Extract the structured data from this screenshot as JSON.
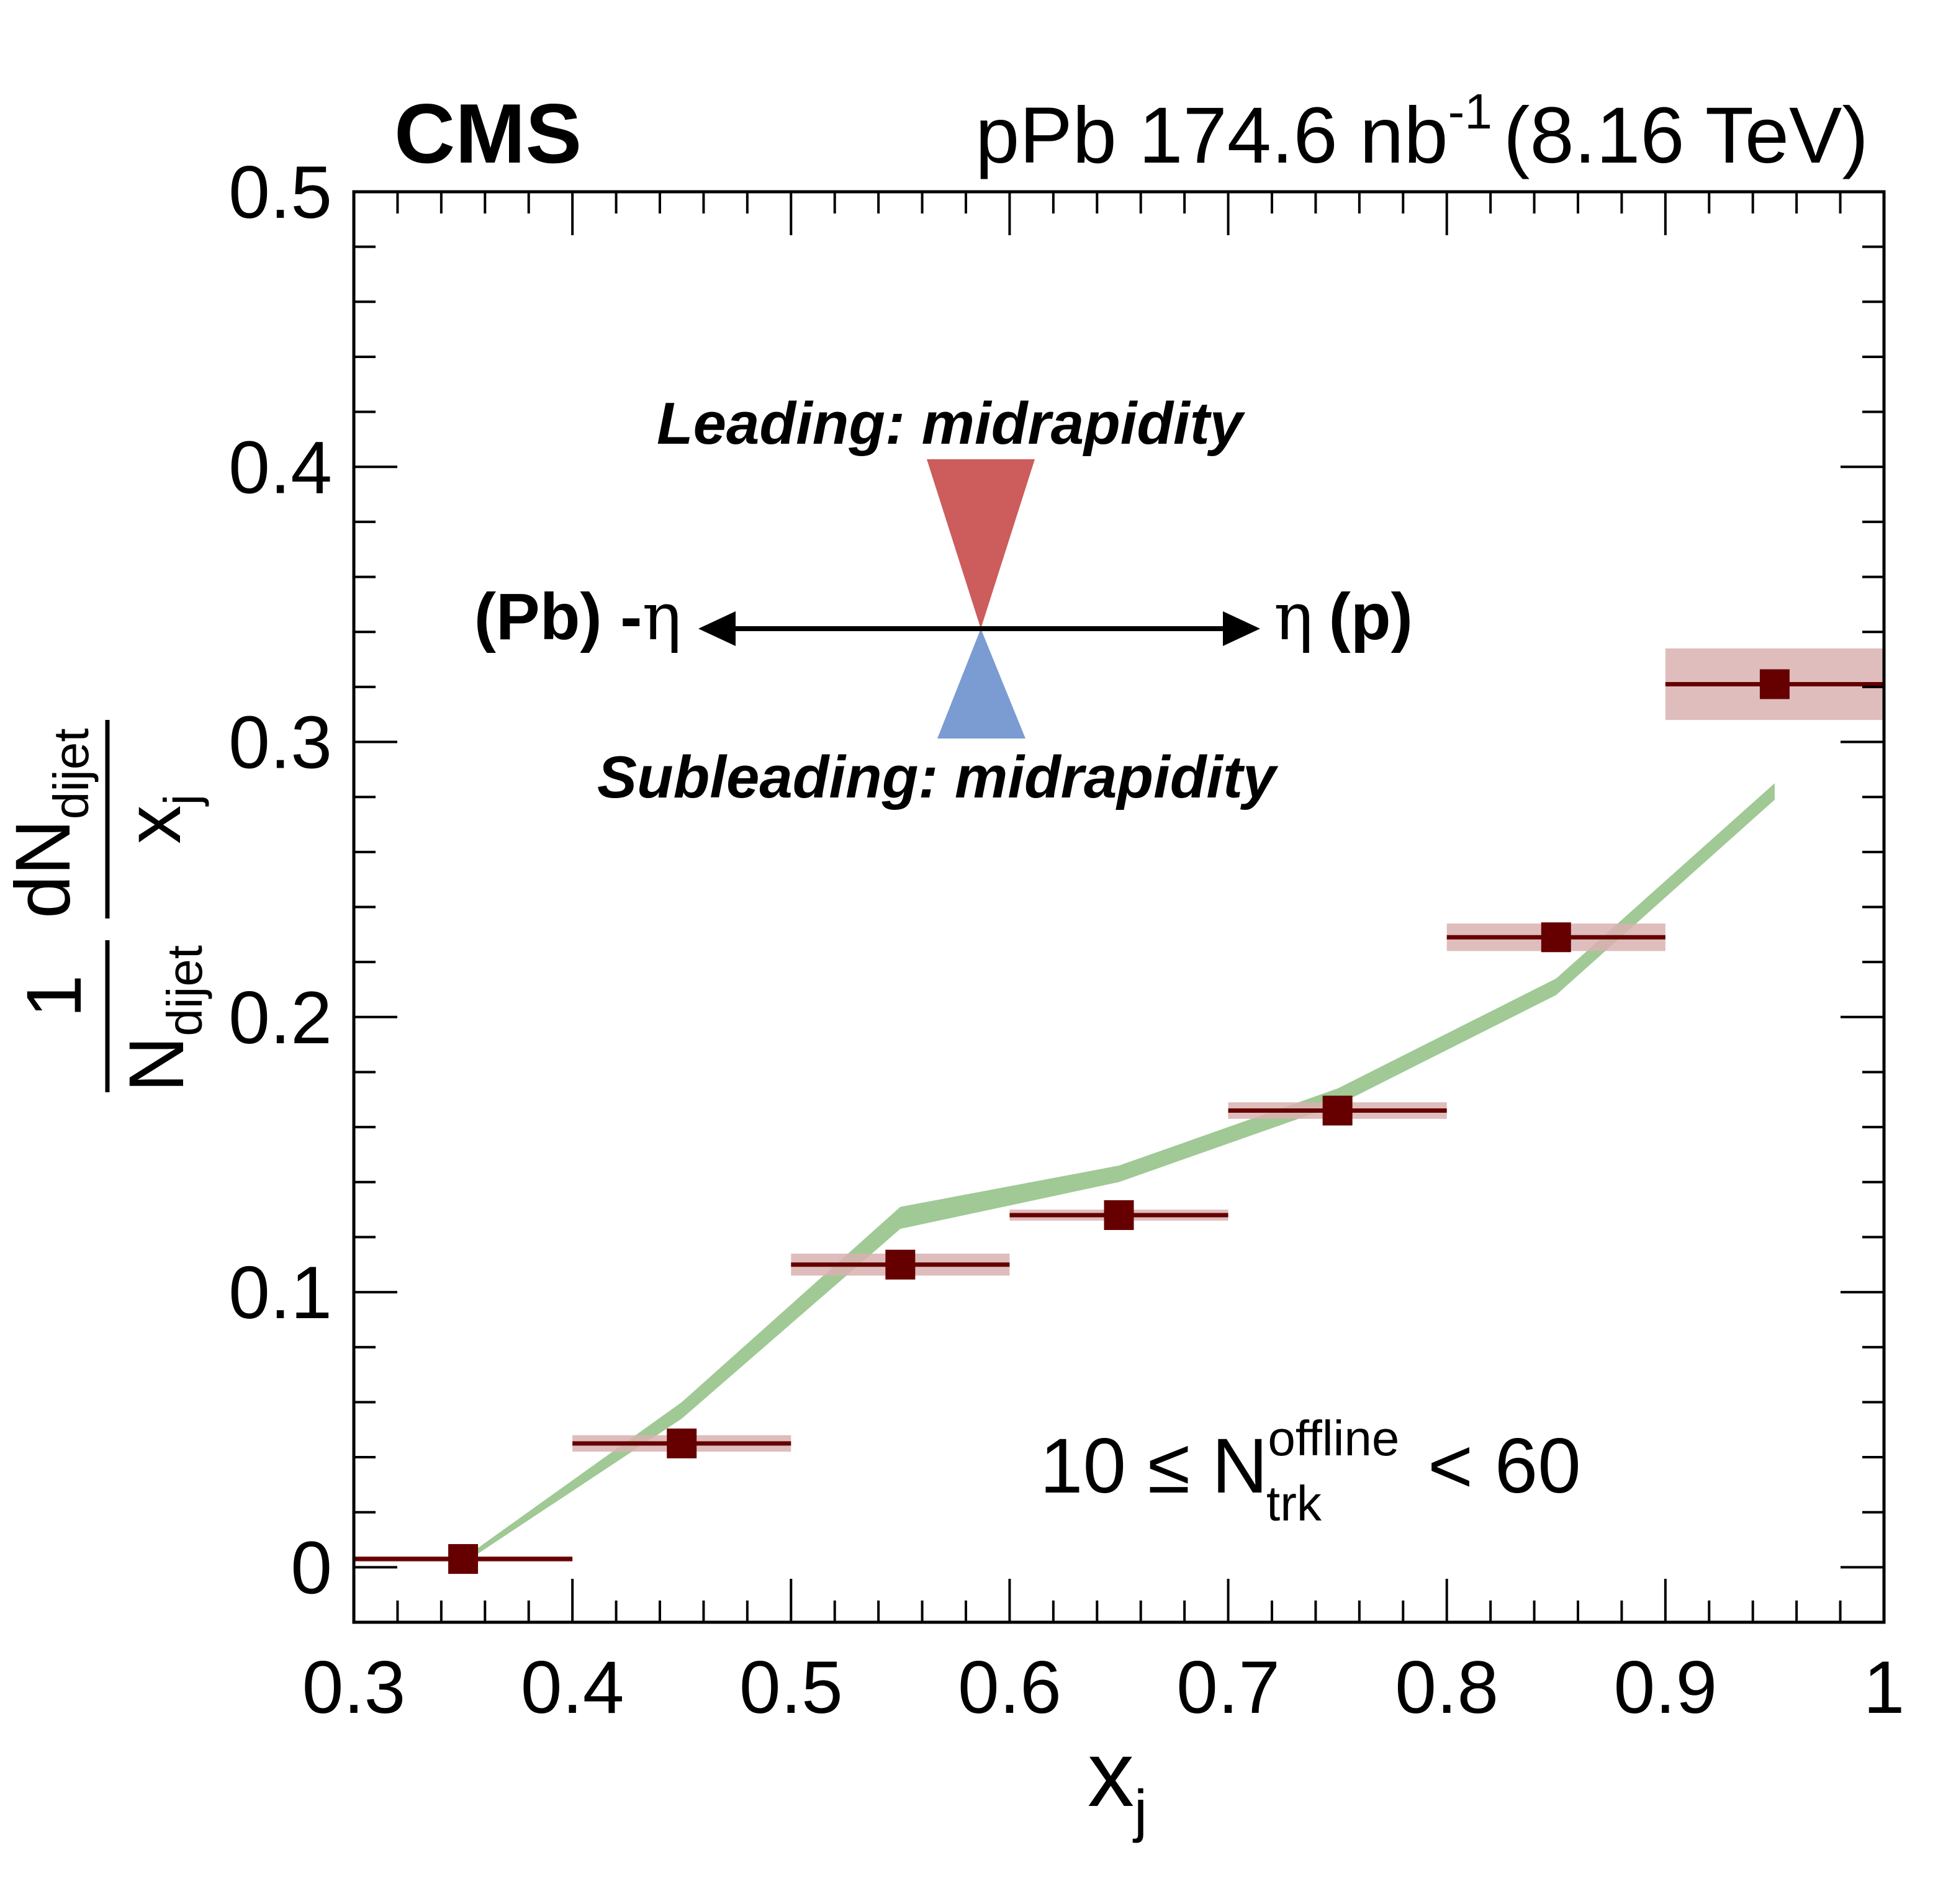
{
  "header": {
    "experiment": "CMS",
    "dataset": "pPb 174.6 nb",
    "dataset_sup": "-1",
    "energy": "(8.16 TeV)"
  },
  "diagram": {
    "leading_label": "Leading: midrapidity",
    "subleading_label": "Subleading: midrapidity",
    "left_label_text": "(Pb) -",
    "left_label_eta": "η",
    "right_label_eta": "η",
    "right_label_text": "(p)",
    "leading_color": "#cd5c5c",
    "subleading_color": "#7b9cd2"
  },
  "selection": {
    "prefix": "10 ≤ N",
    "sup": "offline",
    "sub": "trk",
    "suffix": "< 60"
  },
  "axes": {
    "xlabel_main": "x",
    "xlabel_sub": "j",
    "ylabel_num_main": "dN",
    "ylabel_num_sub": "dijet",
    "ylabel_den_main": "x",
    "ylabel_den_sub": "j",
    "ylabel_pref_num": "1",
    "ylabel_pref_den_main": "N",
    "ylabel_pref_den_sub": "dijet"
  },
  "chart_data": {
    "type": "scatter",
    "xlim": [
      0.3,
      1.0
    ],
    "ylim": [
      -0.02,
      0.5
    ],
    "x_ticks": [
      "0.3",
      "0.4",
      "0.5",
      "0.6",
      "0.7",
      "0.8",
      "0.9",
      "1"
    ],
    "y_ticks": [
      "0",
      "0.1",
      "0.2",
      "0.3",
      "0.4",
      "0.5"
    ],
    "grid": false,
    "data_color": "#660000",
    "syst_color": "#d9b2b2",
    "band_color": "#8fbf82",
    "data": {
      "x": [
        0.35,
        0.45,
        0.55,
        0.65,
        0.75,
        0.85,
        0.95
      ],
      "xerr": [
        0.05,
        0.05,
        0.05,
        0.05,
        0.05,
        0.05,
        0.05
      ],
      "y": [
        0.003,
        0.045,
        0.11,
        0.128,
        0.166,
        0.229,
        0.321
      ],
      "syst": [
        0.001,
        0.003,
        0.004,
        0.002,
        0.003,
        0.005,
        0.013
      ]
    },
    "band": {
      "x": [
        0.355,
        0.45,
        0.55,
        0.65,
        0.75,
        0.85,
        0.95
      ],
      "center": [
        0.005,
        0.057,
        0.127,
        0.143,
        0.171,
        0.211,
        0.282
      ],
      "half_width": [
        0.001,
        0.003,
        0.004,
        0.003,
        0.003,
        0.003,
        0.003
      ]
    }
  }
}
